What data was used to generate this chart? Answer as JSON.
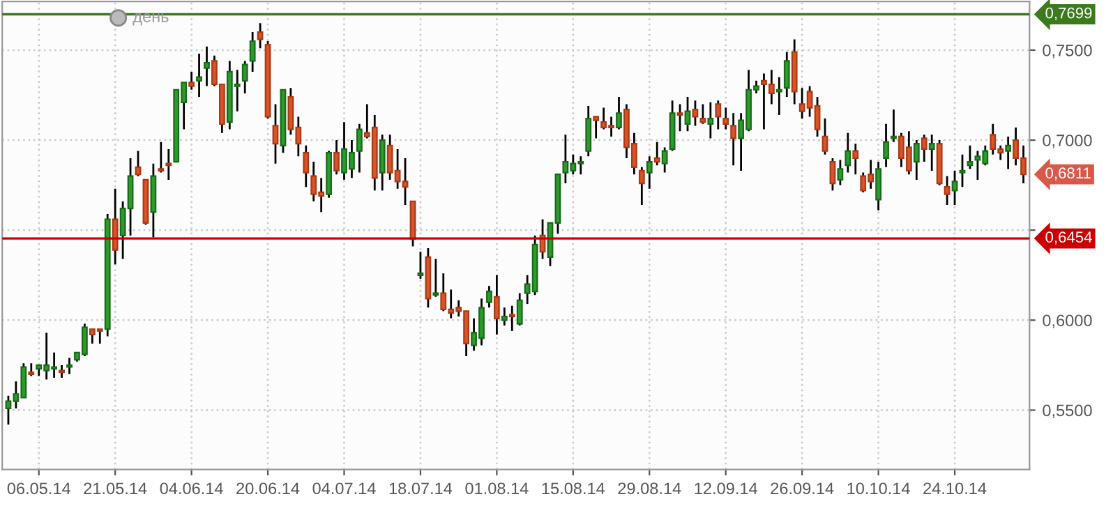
{
  "chart_data": {
    "type": "candlestick",
    "subtitle": "день",
    "categories": [
      null,
      null,
      null,
      null,
      "06.05.14",
      null,
      null,
      null,
      null,
      null,
      null,
      null,
      null,
      null,
      "21.05.14",
      null,
      null,
      null,
      null,
      null,
      null,
      null,
      null,
      null,
      "04.06.14",
      null,
      null,
      null,
      null,
      null,
      null,
      null,
      null,
      null,
      "20.06.14",
      null,
      null,
      null,
      null,
      null,
      null,
      null,
      null,
      null,
      "04.07.14",
      null,
      null,
      null,
      null,
      null,
      null,
      null,
      null,
      null,
      "18.07.14",
      null,
      null,
      null,
      null,
      null,
      null,
      null,
      null,
      null,
      "01.08.14",
      null,
      null,
      null,
      null,
      null,
      null,
      null,
      null,
      null,
      "15.08.14",
      null,
      null,
      null,
      null,
      null,
      null,
      null,
      null,
      null,
      "29.08.14",
      null,
      null,
      null,
      null,
      null,
      null,
      null,
      null,
      null,
      "12.09.14",
      null,
      null,
      null,
      null,
      null,
      null,
      null,
      null,
      null,
      "26.09.14",
      null,
      null,
      null,
      null,
      null,
      null,
      null,
      null,
      null,
      "10.10.14",
      null,
      null,
      null,
      null,
      null,
      null,
      null,
      null,
      null,
      "24.10.14",
      null,
      null,
      null,
      null,
      null,
      null,
      null,
      null,
      null
    ],
    "ohlc": [
      [
        0.551,
        0.558,
        0.542,
        0.555
      ],
      [
        0.555,
        0.566,
        0.551,
        0.559
      ],
      [
        0.557,
        0.576,
        0.557,
        0.574
      ],
      [
        0.571,
        0.576,
        0.569,
        0.57
      ],
      [
        0.573,
        0.575,
        0.569,
        0.575
      ],
      [
        0.572,
        0.593,
        0.567,
        0.575
      ],
      [
        0.573,
        0.582,
        0.568,
        0.574
      ],
      [
        0.572,
        0.575,
        0.568,
        0.571
      ],
      [
        0.574,
        0.579,
        0.57,
        0.575
      ],
      [
        0.578,
        0.582,
        0.577,
        0.582
      ],
      [
        0.581,
        0.598,
        0.58,
        0.596
      ],
      [
        0.595,
        0.595,
        0.587,
        0.592
      ],
      [
        0.595,
        0.595,
        0.587,
        0.594
      ],
      [
        0.595,
        0.659,
        0.591,
        0.656
      ],
      [
        0.656,
        0.673,
        0.631,
        0.639
      ],
      [
        0.647,
        0.666,
        0.634,
        0.662
      ],
      [
        0.662,
        0.69,
        0.647,
        0.68
      ],
      [
        0.685,
        0.694,
        0.68,
        0.681
      ],
      [
        0.678,
        0.678,
        0.653,
        0.654
      ],
      [
        0.66,
        0.687,
        0.646,
        0.68
      ],
      [
        0.684,
        0.699,
        0.682,
        0.683
      ],
      [
        0.687,
        0.695,
        0.678,
        0.686
      ],
      [
        0.688,
        0.728,
        0.688,
        0.728
      ],
      [
        0.721,
        0.732,
        0.706,
        0.732
      ],
      [
        0.732,
        0.738,
        0.728,
        0.73
      ],
      [
        0.733,
        0.748,
        0.724,
        0.735
      ],
      [
        0.74,
        0.752,
        0.73,
        0.743
      ],
      [
        0.744,
        0.747,
        0.73,
        0.731
      ],
      [
        0.731,
        0.731,
        0.704,
        0.709
      ],
      [
        0.71,
        0.744,
        0.706,
        0.738
      ],
      [
        0.73,
        0.739,
        0.716,
        0.731
      ],
      [
        0.733,
        0.744,
        0.726,
        0.742
      ],
      [
        0.744,
        0.76,
        0.738,
        0.755
      ],
      [
        0.76,
        0.765,
        0.751,
        0.756
      ],
      [
        0.753,
        0.755,
        0.712,
        0.713
      ],
      [
        0.708,
        0.72,
        0.687,
        0.698
      ],
      [
        0.697,
        0.728,
        0.693,
        0.728
      ],
      [
        0.724,
        0.729,
        0.703,
        0.706
      ],
      [
        0.707,
        0.713,
        0.691,
        0.698
      ],
      [
        0.693,
        0.697,
        0.674,
        0.682
      ],
      [
        0.68,
        0.688,
        0.666,
        0.67
      ],
      [
        0.671,
        0.679,
        0.66,
        0.669
      ],
      [
        0.67,
        0.694,
        0.668,
        0.693
      ],
      [
        0.693,
        0.7,
        0.681,
        0.683
      ],
      [
        0.682,
        0.71,
        0.678,
        0.695
      ],
      [
        0.684,
        0.7,
        0.679,
        0.693
      ],
      [
        0.694,
        0.709,
        0.682,
        0.706
      ],
      [
        0.704,
        0.72,
        0.701,
        0.702
      ],
      [
        0.707,
        0.714,
        0.672,
        0.679
      ],
      [
        0.682,
        0.703,
        0.672,
        0.7
      ],
      [
        0.697,
        0.703,
        0.678,
        0.682
      ],
      [
        0.683,
        0.695,
        0.673,
        0.677
      ],
      [
        0.677,
        0.69,
        0.664,
        0.674
      ],
      [
        0.666,
        0.666,
        0.641,
        0.645
      ],
      [
        0.625,
        0.638,
        0.623,
        0.626
      ],
      [
        0.635,
        0.64,
        0.607,
        0.612
      ],
      [
        0.614,
        0.634,
        0.613,
        0.615
      ],
      [
        0.615,
        0.626,
        0.605,
        0.606
      ],
      [
        0.606,
        0.617,
        0.601,
        0.604
      ],
      [
        0.607,
        0.611,
        0.602,
        0.605
      ],
      [
        0.605,
        0.605,
        0.58,
        0.587
      ],
      [
        0.586,
        0.601,
        0.583,
        0.593
      ],
      [
        0.59,
        0.612,
        0.586,
        0.607
      ],
      [
        0.61,
        0.619,
        0.607,
        0.616
      ],
      [
        0.613,
        0.625,
        0.592,
        0.601
      ],
      [
        0.6,
        0.607,
        0.597,
        0.602
      ],
      [
        0.603,
        0.608,
        0.594,
        0.602
      ],
      [
        0.598,
        0.615,
        0.597,
        0.611
      ],
      [
        0.615,
        0.625,
        0.609,
        0.62
      ],
      [
        0.616,
        0.647,
        0.614,
        0.642
      ],
      [
        0.647,
        0.656,
        0.634,
        0.638
      ],
      [
        0.635,
        0.654,
        0.63,
        0.654
      ],
      [
        0.654,
        0.681,
        0.648,
        0.681
      ],
      [
        0.682,
        0.703,
        0.676,
        0.688
      ],
      [
        0.683,
        0.692,
        0.681,
        0.687
      ],
      [
        0.687,
        0.691,
        0.681,
        0.688
      ],
      [
        0.694,
        0.719,
        0.691,
        0.712
      ],
      [
        0.713,
        0.713,
        0.701,
        0.711
      ],
      [
        0.71,
        0.718,
        0.706,
        0.707
      ],
      [
        0.708,
        0.713,
        0.702,
        0.707
      ],
      [
        0.707,
        0.724,
        0.706,
        0.715
      ],
      [
        0.717,
        0.72,
        0.69,
        0.696
      ],
      [
        0.698,
        0.704,
        0.681,
        0.685
      ],
      [
        0.683,
        0.685,
        0.664,
        0.676
      ],
      [
        0.682,
        0.691,
        0.673,
        0.688
      ],
      [
        0.69,
        0.699,
        0.686,
        0.688
      ],
      [
        0.687,
        0.696,
        0.682,
        0.694
      ],
      [
        0.695,
        0.722,
        0.694,
        0.715
      ],
      [
        0.715,
        0.72,
        0.705,
        0.714
      ],
      [
        0.709,
        0.724,
        0.705,
        0.716
      ],
      [
        0.717,
        0.722,
        0.708,
        0.713
      ],
      [
        0.712,
        0.72,
        0.709,
        0.71
      ],
      [
        0.709,
        0.721,
        0.701,
        0.712
      ],
      [
        0.72,
        0.722,
        0.706,
        0.713
      ],
      [
        0.712,
        0.718,
        0.706,
        0.709
      ],
      [
        0.708,
        0.715,
        0.686,
        0.701
      ],
      [
        0.701,
        0.715,
        0.683,
        0.711
      ],
      [
        0.706,
        0.739,
        0.705,
        0.728
      ],
      [
        0.728,
        0.733,
        0.726,
        0.73
      ],
      [
        0.733,
        0.737,
        0.706,
        0.731
      ],
      [
        0.731,
        0.739,
        0.72,
        0.726
      ],
      [
        0.727,
        0.735,
        0.714,
        0.728
      ],
      [
        0.729,
        0.749,
        0.724,
        0.744
      ],
      [
        0.749,
        0.756,
        0.72,
        0.727
      ],
      [
        0.72,
        0.729,
        0.712,
        0.716
      ],
      [
        0.727,
        0.73,
        0.713,
        0.718
      ],
      [
        0.719,
        0.724,
        0.702,
        0.706
      ],
      [
        0.702,
        0.712,
        0.692,
        0.694
      ],
      [
        0.688,
        0.69,
        0.672,
        0.676
      ],
      [
        0.678,
        0.689,
        0.675,
        0.684
      ],
      [
        0.686,
        0.704,
        0.682,
        0.694
      ],
      [
        0.694,
        0.698,
        0.681,
        0.69
      ],
      [
        0.68,
        0.682,
        0.671,
        0.672
      ],
      [
        0.681,
        0.689,
        0.673,
        0.677
      ],
      [
        0.667,
        0.688,
        0.661,
        0.684
      ],
      [
        0.69,
        0.709,
        0.685,
        0.699
      ],
      [
        0.701,
        0.717,
        0.699,
        0.702
      ],
      [
        0.702,
        0.704,
        0.685,
        0.69
      ],
      [
        0.696,
        0.705,
        0.681,
        0.683
      ],
      [
        0.688,
        0.7,
        0.678,
        0.698
      ],
      [
        0.701,
        0.703,
        0.688,
        0.695
      ],
      [
        0.695,
        0.703,
        0.683,
        0.698
      ],
      [
        0.698,
        0.7,
        0.675,
        0.676
      ],
      [
        0.674,
        0.68,
        0.664,
        0.67
      ],
      [
        0.672,
        0.683,
        0.664,
        0.677
      ],
      [
        0.682,
        0.692,
        0.674,
        0.683
      ],
      [
        0.686,
        0.697,
        0.684,
        0.688
      ],
      [
        0.689,
        0.694,
        0.678,
        0.691
      ],
      [
        0.687,
        0.697,
        0.686,
        0.694
      ],
      [
        0.703,
        0.709,
        0.692,
        0.695
      ],
      [
        0.695,
        0.697,
        0.689,
        0.693
      ],
      [
        0.694,
        0.702,
        0.684,
        0.697
      ],
      [
        0.7,
        0.707,
        0.686,
        0.69
      ],
      [
        0.69,
        0.697,
        0.676,
        0.681
      ]
    ],
    "ylim": [
      0.517,
      0.777
    ],
    "yticks": [
      {
        "value": 0.55,
        "label": "0,5500"
      },
      {
        "value": 0.6,
        "label": "0,6000"
      },
      {
        "value": 0.65,
        "label": null
      },
      {
        "value": 0.7,
        "label": "0,7000"
      },
      {
        "value": 0.75,
        "label": "0,7500"
      }
    ],
    "ref_lines": [
      {
        "axis": "y",
        "value": 0.7699,
        "label": "0,7699",
        "color": "#3c7a1e"
      },
      {
        "axis": "y",
        "value": 0.6454,
        "label": "0,6454",
        "color": "#cc0000"
      }
    ],
    "annotations": [
      "0,6811"
    ],
    "grid": true
  }
}
